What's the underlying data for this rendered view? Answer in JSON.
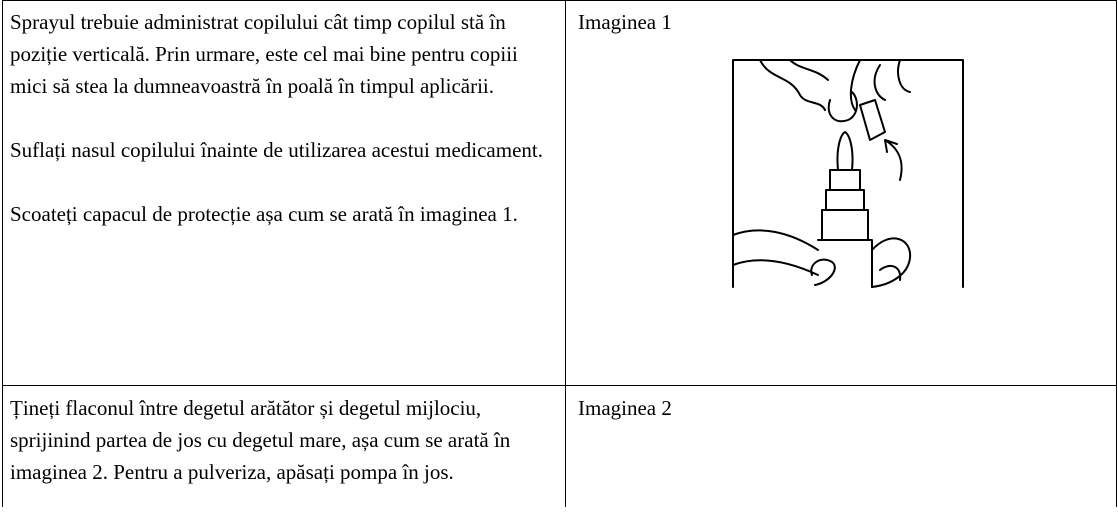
{
  "table": {
    "rows": [
      {
        "instructions": [
          "Sprayul trebuie administrat copilului cât timp copilul stă în poziție verticală. Prin urmare, este cel mai bine pentru copiii mici să stea la dumneavoastră în poală în timpul aplicării.",
          "Suflați nasul copilului înainte de utilizarea acestui medicament.",
          "Scoateți capacul de protecție așa cum se arată în imaginea 1."
        ],
        "caption": "Imaginea 1"
      },
      {
        "instructions": [
          "Țineți flaconul între degetul arătător și degetul mijlociu, sprijinind partea de jos cu degetul mare, așa cum se arată în imaginea 2. Pentru a pulveriza, apăsați pompa în jos."
        ],
        "caption": "Imaginea 2"
      }
    ]
  }
}
